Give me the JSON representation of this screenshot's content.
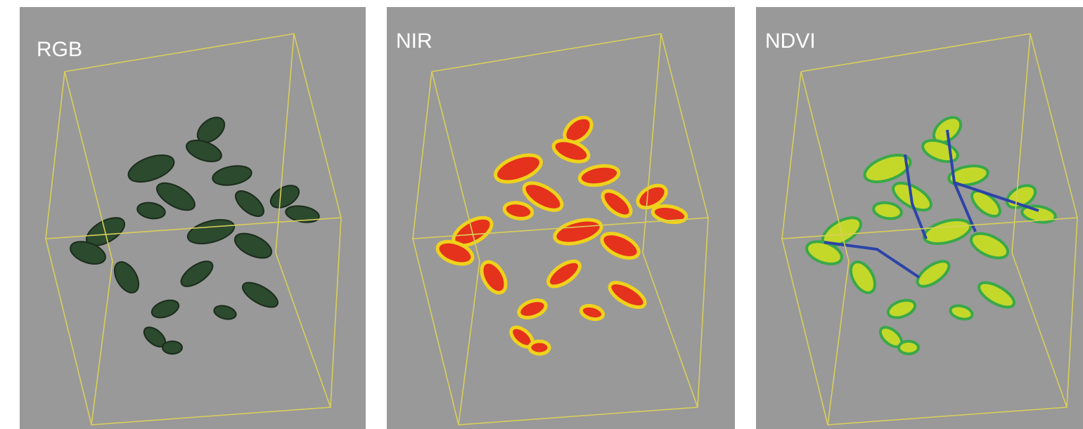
{
  "panels": [
    {
      "label": "RGB"
    },
    {
      "label": "NIR"
    },
    {
      "label": "NDVI"
    }
  ]
}
